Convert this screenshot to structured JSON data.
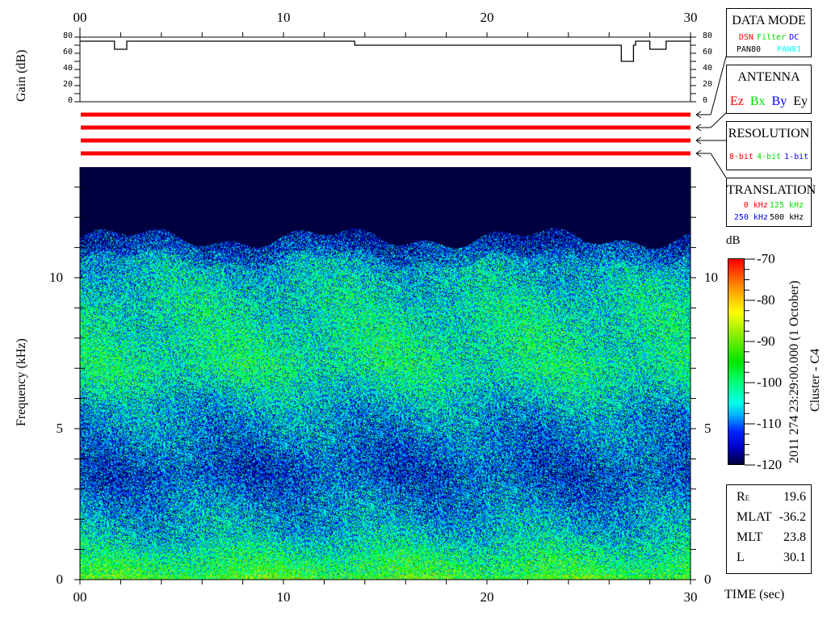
{
  "chart_data": [
    {
      "type": "line",
      "ylabel": "Gain (dB)",
      "ylim": [
        0,
        80
      ],
      "yticks": [
        "80",
        "60",
        "40",
        "20",
        "0"
      ],
      "xlim": [
        0,
        30
      ],
      "xticks_top": [
        "00",
        "10",
        "20",
        "30"
      ],
      "series": [
        {
          "x": [
            0,
            1.6,
            1.7,
            2.2,
            2.3,
            13.5,
            13.5,
            26.3,
            26.6,
            26.8,
            27.2,
            27.3,
            27.9,
            28.0,
            28.7,
            28.8,
            30
          ],
          "y": [
            75,
            75,
            65,
            65,
            75,
            75,
            70,
            70,
            50,
            50,
            70,
            75,
            75,
            65,
            65,
            75,
            75
          ]
        }
      ]
    },
    {
      "type": "heatmap",
      "xlabel": "TIME (sec)",
      "ylabel": "Frequency (kHz)",
      "xlim": [
        0,
        30
      ],
      "ylim": [
        0,
        13.7
      ],
      "xticks": [
        "00",
        "10",
        "20",
        "30"
      ],
      "yticks": [
        "0",
        "5",
        "10"
      ],
      "colorbar": {
        "label": "dB",
        "range": [
          -120,
          -70
        ],
        "ticks": [
          "-70",
          "-80",
          "-90",
          "-100",
          "-110",
          "-120"
        ]
      },
      "frequency_profile_db": [
        {
          "freq_khz": 0.3,
          "db": -97
        },
        {
          "freq_khz": 1.5,
          "db": -106
        },
        {
          "freq_khz": 3.5,
          "db": -113
        },
        {
          "freq_khz": 5.5,
          "db": -108
        },
        {
          "freq_khz": 7.0,
          "db": -101
        },
        {
          "freq_khz": 9.0,
          "db": -103
        },
        {
          "freq_khz": 10.5,
          "db": -107
        },
        {
          "freq_khz": 12.5,
          "db": -120
        }
      ]
    }
  ],
  "status_bars": {
    "count": 4,
    "color": "#ff0000"
  },
  "panels": {
    "data_mode": {
      "title": "DATA MODE",
      "items": [
        {
          "t": "DSN",
          "c": "#ff0000"
        },
        {
          "t": "Filter",
          "c": "#00dd00"
        },
        {
          "t": "DC",
          "c": "#0000ff"
        }
      ],
      "items2": [
        {
          "t": "PAN80",
          "c": "#000000"
        },
        {
          "t": "PAN81",
          "c": "#00ffff"
        }
      ]
    },
    "antenna": {
      "title": "ANTENNA",
      "items": [
        {
          "t": "Ez",
          "c": "#ff0000"
        },
        {
          "t": "Bx",
          "c": "#00dd00"
        },
        {
          "t": "By",
          "c": "#0000ff"
        },
        {
          "t": "Ey",
          "c": "#000000"
        }
      ]
    },
    "resolution": {
      "title": "RESOLUTION",
      "items": [
        {
          "t": "8-bit",
          "c": "#ff0000"
        },
        {
          "t": "4-bit",
          "c": "#00dd00"
        },
        {
          "t": "1-bit",
          "c": "#0000ff"
        }
      ]
    },
    "translation": {
      "title": "TRANSLATION",
      "items": [
        {
          "t": "0 kHz",
          "c": "#ff0000"
        },
        {
          "t": "125 kHz",
          "c": "#00dd00"
        }
      ],
      "items2": [
        {
          "t": "250 kHz",
          "c": "#0000ff"
        },
        {
          "t": "500 kHz",
          "c": "#000000"
        }
      ]
    }
  },
  "timestamp": "2011 274 23:29:00.000 (1 October)",
  "spacecraft": "Cluster - C4",
  "ephemeris": [
    {
      "label": "R",
      "sub": "E",
      "value": "19.6"
    },
    {
      "label": "MLAT",
      "sub": "",
      "value": "-36.2"
    },
    {
      "label": "MLT",
      "sub": "",
      "value": "23.8"
    },
    {
      "label": "L",
      "sub": "",
      "value": "30.1"
    }
  ]
}
